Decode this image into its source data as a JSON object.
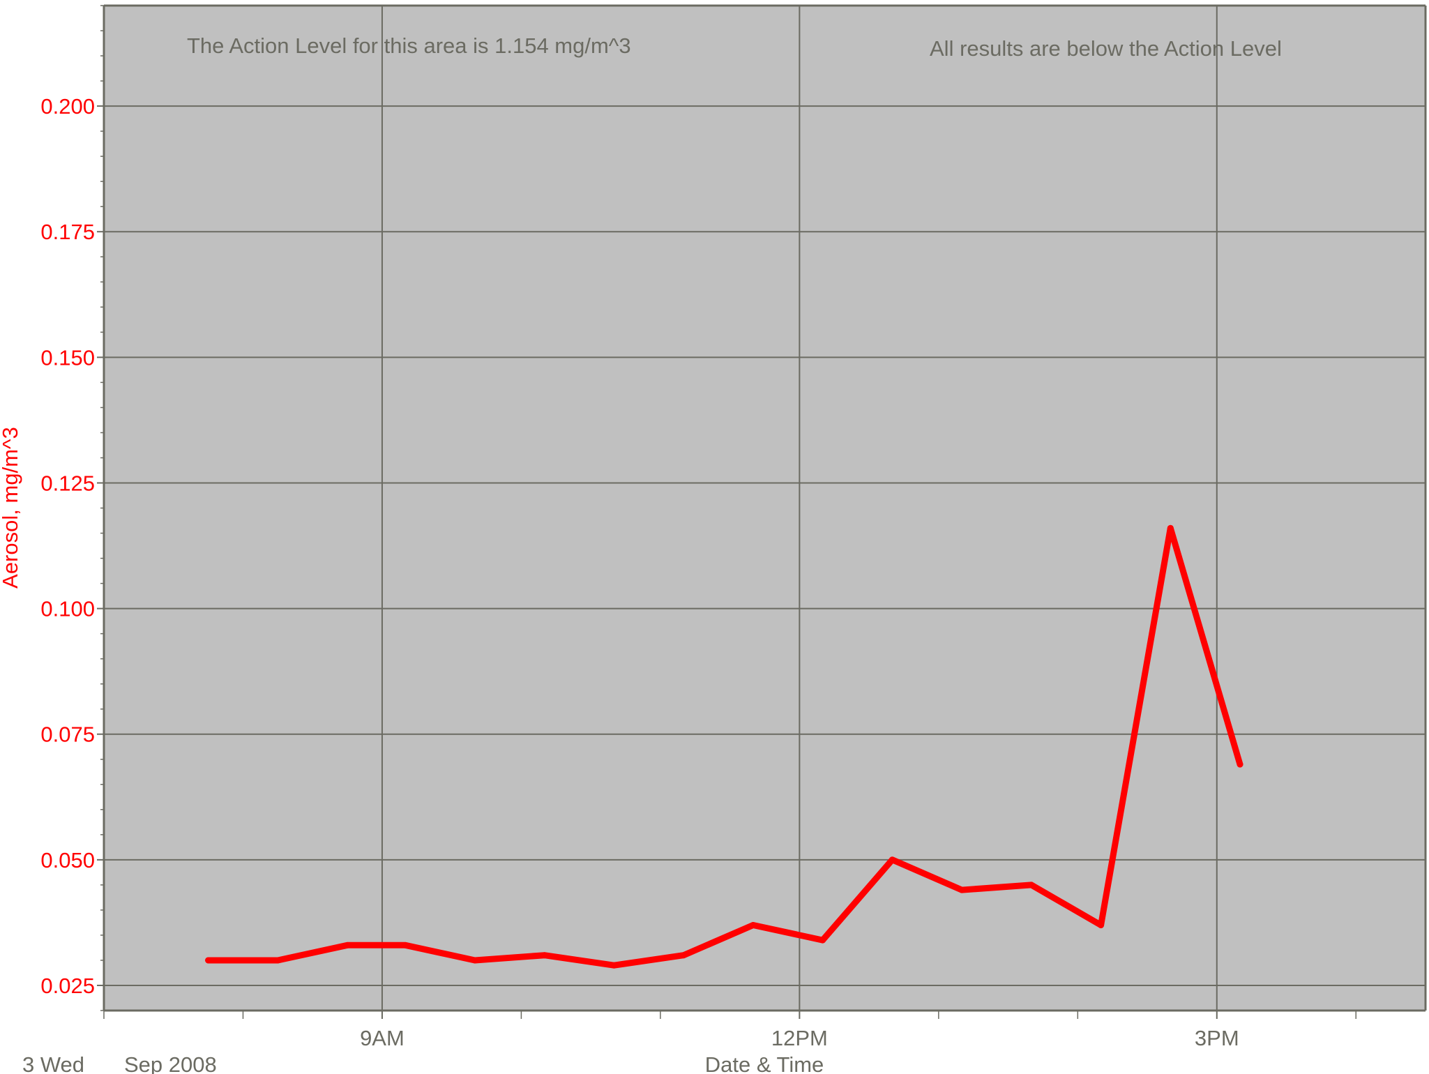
{
  "chart_data": {
    "type": "line",
    "annotations": {
      "left": "The Action Level for this area is 1.154 mg/m^3",
      "right": "All results are below the Action Level"
    },
    "xlabel": "Date & Time",
    "ylabel": "Aerosol, mg/m^3",
    "date_label_day": "3 Wed",
    "date_label_month": "Sep 2008",
    "x_ticks": [
      "9AM",
      "12PM",
      "3PM"
    ],
    "y_ticks": [
      "0.025",
      "0.050",
      "0.075",
      "0.100",
      "0.125",
      "0.150",
      "0.175",
      "0.200"
    ],
    "xlim": [
      "07:00",
      "16:30"
    ],
    "ylim": [
      0.02,
      0.22
    ],
    "grid": true,
    "colors": {
      "series": "#ff0000",
      "plot_background": "#c0c0c0",
      "grid": "#6b6b62",
      "axis_text": "#ff0000"
    },
    "series": [
      {
        "x": [
          "07:45",
          "08:15",
          "08:45",
          "09:10",
          "09:40",
          "10:10",
          "10:40",
          "11:10",
          "11:40",
          "12:10",
          "12:40",
          "13:10",
          "13:40",
          "14:10",
          "14:40",
          "15:10"
        ],
        "values": [
          0.03,
          0.03,
          0.033,
          0.033,
          0.03,
          0.031,
          0.029,
          0.031,
          0.037,
          0.034,
          0.05,
          0.044,
          0.045,
          0.037,
          0.116,
          0.069
        ]
      }
    ]
  }
}
